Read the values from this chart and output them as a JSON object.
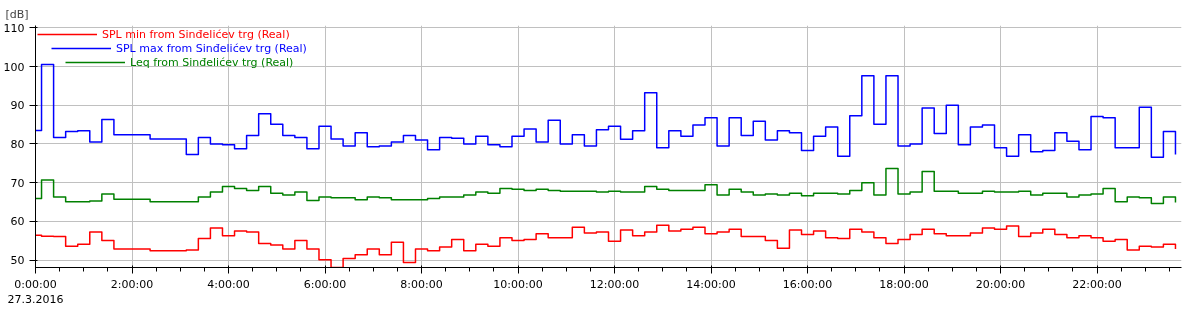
{
  "chart_data": {
    "type": "step",
    "ylabel": "[dB]",
    "x": [
      0,
      0.125,
      0.375,
      0.625,
      0.875,
      1.125,
      1.375,
      1.625,
      1.875,
      2.125,
      2.375,
      2.625,
      2.875,
      3.125,
      3.375,
      3.625,
      3.875,
      4.125,
      4.375,
      4.625,
      4.875,
      5.125,
      5.375,
      5.625,
      5.875,
      6.125,
      6.375,
      6.625,
      6.875,
      7.125,
      7.375,
      7.625,
      7.875,
      8.125,
      8.375,
      8.625,
      8.875,
      9.125,
      9.375,
      9.625,
      9.875,
      10.125,
      10.375,
      10.625,
      10.875,
      11.125,
      11.375,
      11.625,
      11.875,
      12.125,
      12.375,
      12.625,
      12.875,
      13.125,
      13.375,
      13.625,
      13.875,
      14.125,
      14.375,
      14.625,
      14.875,
      15.125,
      15.375,
      15.625,
      15.875,
      16.125,
      16.375,
      16.625,
      16.875,
      17.125,
      17.375,
      17.625,
      17.875,
      18.125,
      18.375,
      18.625,
      18.875,
      19.125,
      19.375,
      19.625,
      19.875,
      20.125,
      20.375,
      20.625,
      20.875,
      21.125,
      21.375,
      21.625,
      21.875,
      22.125,
      22.375,
      22.625,
      22.875,
      23.125,
      23.375,
      23.625
    ],
    "series": [
      {
        "name": "SPL min from Sinđelićev trg (Real)",
        "color": "#ff0000",
        "values": [
          56.4,
          56.2,
          56.1,
          53.6,
          54.1,
          57.3,
          55.1,
          52.9,
          52.9,
          52.9,
          52.4,
          52.4,
          52.4,
          52.6,
          55.6,
          58.3,
          56.3,
          57.5,
          57.3,
          54.3,
          53.9,
          52.9,
          55.1,
          52.9,
          50.1,
          48.1,
          50.4,
          51.4,
          52.9,
          51.4,
          54.6,
          49.4,
          52.9,
          52.4,
          53.4,
          55.3,
          52.4,
          54.1,
          53.6,
          55.8,
          55.1,
          55.3,
          56.8,
          55.8,
          55.8,
          58.5,
          57.0,
          57.3,
          54.9,
          57.8,
          56.3,
          57.3,
          59.0,
          57.5,
          58.0,
          58.5,
          56.8,
          57.3,
          58.0,
          56.1,
          56.1,
          55.1,
          53.1,
          57.8,
          56.6,
          57.5,
          55.8,
          55.6,
          58.0,
          57.3,
          55.8,
          54.3,
          55.3,
          56.6,
          58.0,
          56.8,
          56.3,
          56.3,
          57.0,
          58.3,
          58.0,
          58.8,
          56.1,
          57.0,
          58.0,
          56.6,
          55.8,
          56.3,
          55.8,
          54.9,
          55.3,
          52.6,
          53.6,
          53.4,
          54.1,
          52.9
        ]
      },
      {
        "name": "SPL max from Sinđelićev trg (Real)",
        "color": "#0000ff",
        "values": [
          83.5,
          100.5,
          81.7,
          83.2,
          83.4,
          80.5,
          86.3,
          82.4,
          82.4,
          82.4,
          81.3,
          81.3,
          81.3,
          77.3,
          81.7,
          80.0,
          79.8,
          78.8,
          82.2,
          87.8,
          85.1,
          82.2,
          81.7,
          78.8,
          84.6,
          81.3,
          79.5,
          82.9,
          79.3,
          79.5,
          80.5,
          82.2,
          81.0,
          78.5,
          81.7,
          81.5,
          80.0,
          82.0,
          79.8,
          79.3,
          82.0,
          83.9,
          80.5,
          86.1,
          80.0,
          82.4,
          79.5,
          83.7,
          84.6,
          81.2,
          83.4,
          93.2,
          79.0,
          83.4,
          82.0,
          84.9,
          86.8,
          79.5,
          86.8,
          82.2,
          85.9,
          81.0,
          83.4,
          82.9,
          78.3,
          82.0,
          84.4,
          76.8,
          87.3,
          97.6,
          85.1,
          97.6,
          79.5,
          80.0,
          89.3,
          82.7,
          90.0,
          79.8,
          84.4,
          84.9,
          79.0,
          76.8,
          82.4,
          78.0,
          78.3,
          82.9,
          80.7,
          78.5,
          87.1,
          86.8,
          79.0,
          79.0,
          89.5,
          76.6,
          83.2,
          77.3
        ]
      },
      {
        "name": "Leq from Sinđelićev trg (Real)",
        "color": "#008000",
        "values": [
          65.9,
          70.7,
          66.3,
          65.1,
          65.1,
          65.3,
          67.1,
          65.7,
          65.7,
          65.7,
          65.1,
          65.1,
          65.1,
          65.1,
          66.3,
          67.6,
          69.0,
          68.5,
          68.0,
          69.0,
          67.3,
          66.8,
          67.6,
          65.4,
          66.3,
          66.1,
          66.1,
          65.6,
          66.3,
          66.1,
          65.6,
          65.6,
          65.6,
          65.9,
          66.3,
          66.3,
          66.8,
          67.6,
          67.3,
          68.5,
          68.3,
          68.0,
          68.3,
          68.0,
          67.8,
          67.8,
          67.8,
          67.6,
          67.8,
          67.6,
          67.6,
          69.0,
          68.3,
          68.0,
          68.0,
          68.0,
          69.5,
          66.8,
          68.3,
          67.6,
          66.8,
          67.1,
          66.8,
          67.3,
          66.6,
          67.3,
          67.3,
          67.1,
          68.0,
          70.0,
          66.8,
          73.7,
          67.1,
          67.6,
          72.9,
          67.8,
          67.8,
          67.3,
          67.3,
          67.8,
          67.6,
          67.6,
          67.8,
          66.8,
          67.3,
          67.3,
          66.3,
          66.8,
          67.1,
          68.5,
          65.1,
          66.3,
          66.1,
          64.6,
          66.3,
          64.9
        ]
      }
    ],
    "xlim": [
      0,
      23.75
    ],
    "ylim": [
      48.1,
      110.6
    ],
    "xticks": [
      {
        "value": 0,
        "label": "0:00:00\n27.3.2016"
      },
      {
        "value": 2,
        "label": "2:00:00"
      },
      {
        "value": 4,
        "label": "4:00:00"
      },
      {
        "value": 6,
        "label": "6:00:00"
      },
      {
        "value": 8,
        "label": "8:00:00"
      },
      {
        "value": 10,
        "label": "10:00:00"
      },
      {
        "value": 12,
        "label": "12:00:00"
      },
      {
        "value": 14,
        "label": "14:00:00"
      },
      {
        "value": 16,
        "label": "16:00:00"
      },
      {
        "value": 18,
        "label": "18:00:00"
      },
      {
        "value": 20,
        "label": "20:00:00"
      },
      {
        "value": 22,
        "label": "22:00:00"
      }
    ],
    "yticks": [
      50,
      60,
      70,
      80,
      90,
      100,
      110
    ],
    "grid": true,
    "legend": "top left",
    "line_style": "solid",
    "marker": "none"
  }
}
